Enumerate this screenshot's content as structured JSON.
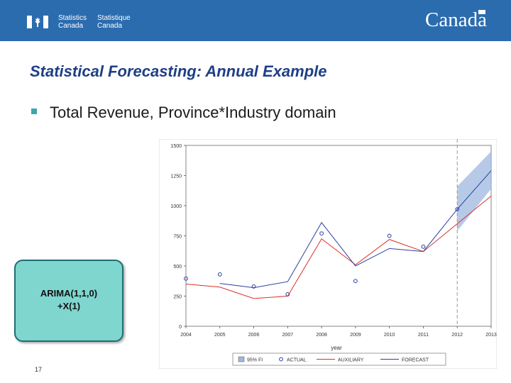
{
  "header": {
    "agency_en_line1": "Statistics",
    "agency_en_line2": "Canada",
    "agency_fr_line1": "Statistique",
    "agency_fr_line2": "Canada",
    "wordmark": "Canada",
    "banner_color": "#2b6cae"
  },
  "slide": {
    "title": "Statistical Forecasting: Annual Example",
    "bullet": "Total Revenue, Province*Industry domain",
    "model_line1": "ARIMA(1,1,0)",
    "model_line2": "+X(1)",
    "page_number": "17"
  },
  "chart_data": {
    "type": "line",
    "x": [
      2004,
      2005,
      2006,
      2007,
      2008,
      2009,
      2010,
      2011,
      2012,
      2013
    ],
    "xticks": [
      "2004",
      "2005",
      "2006",
      "2007",
      "2008",
      "2009",
      "2010",
      "2011",
      "2012",
      "2013"
    ],
    "xlabel": "year",
    "ylim": [
      0,
      1500
    ],
    "yticks": [
      "0",
      "250",
      "500",
      "750",
      "1000",
      "1250",
      "1500"
    ],
    "ytick_values": [
      0,
      250,
      500,
      750,
      1000,
      1250,
      1500
    ],
    "forecast_start": 2012,
    "series": [
      {
        "name": "ACTUAL",
        "kind": "points",
        "color": "#2b3fa0",
        "x": [
          2004,
          2005,
          2006,
          2007,
          2008,
          2009,
          2010,
          2011,
          2012
        ],
        "values": [
          395,
          430,
          330,
          265,
          770,
          375,
          750,
          660,
          970
        ]
      },
      {
        "name": "AUXILIARY",
        "kind": "line",
        "color": "#d9302b",
        "values": [
          350,
          325,
          230,
          250,
          725,
          510,
          720,
          620,
          850,
          1080
        ]
      },
      {
        "name": "FORECAST",
        "kind": "line",
        "color": "#2b3fa0",
        "values": [
          null,
          355,
          320,
          370,
          860,
          500,
          645,
          620,
          970,
          1290
        ]
      },
      {
        "name": "95% FI",
        "kind": "band",
        "color": "#9db8e0",
        "x": [
          2012,
          2013
        ],
        "lower": [
          790,
          1140
        ],
        "upper": [
          1160,
          1450
        ]
      }
    ]
  }
}
